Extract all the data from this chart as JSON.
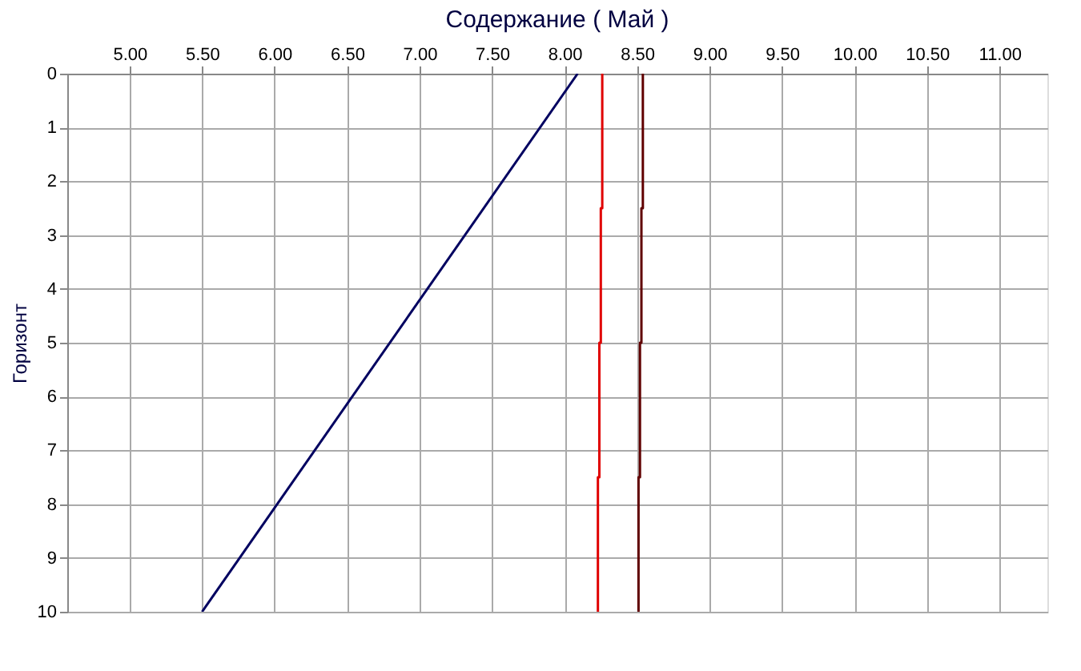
{
  "chart_data": {
    "type": "line",
    "title": "Содержание    ( Май )",
    "ylabel": "Горизонт",
    "xlim": [
      4.57,
      11.33
    ],
    "xticks": [
      {
        "value": 5,
        "label": "5.00"
      },
      {
        "value": 5.5,
        "label": "5.50"
      },
      {
        "value": 6,
        "label": "6.00"
      },
      {
        "value": 6.5,
        "label": "6.50"
      },
      {
        "value": 7,
        "label": "7.00"
      },
      {
        "value": 7.5,
        "label": "7.50"
      },
      {
        "value": 8,
        "label": "8.00"
      },
      {
        "value": 8.5,
        "label": "8.50"
      },
      {
        "value": 9,
        "label": "9.00"
      },
      {
        "value": 9.5,
        "label": "9.50"
      },
      {
        "value": 10,
        "label": "10.00"
      },
      {
        "value": 10.5,
        "label": "10.50"
      },
      {
        "value": 11,
        "label": "11.00"
      }
    ],
    "ylim": [
      10,
      0
    ],
    "yticks": [
      0,
      1,
      2,
      3,
      4,
      5,
      6,
      7,
      8,
      9,
      10
    ],
    "grid": true,
    "legend": false,
    "line_style": "solid",
    "series": [
      {
        "color": "#000060",
        "x": [
          8.09,
          5.5
        ],
        "values": [
          0,
          10
        ]
      },
      {
        "color": "#e00000",
        "x": [
          8.26,
          8.26,
          8.25,
          8.25,
          8.24,
          8.24,
          8.23,
          8.23
        ],
        "values": [
          0,
          2.5,
          2.5,
          5,
          5,
          7.5,
          7.5,
          10
        ]
      },
      {
        "color": "#600000",
        "x": [
          8.54,
          8.54,
          8.53,
          8.53,
          8.52,
          8.52,
          8.51,
          8.51
        ],
        "values": [
          0,
          2.5,
          2.5,
          5,
          5,
          7.5,
          7.5,
          10
        ]
      }
    ]
  }
}
